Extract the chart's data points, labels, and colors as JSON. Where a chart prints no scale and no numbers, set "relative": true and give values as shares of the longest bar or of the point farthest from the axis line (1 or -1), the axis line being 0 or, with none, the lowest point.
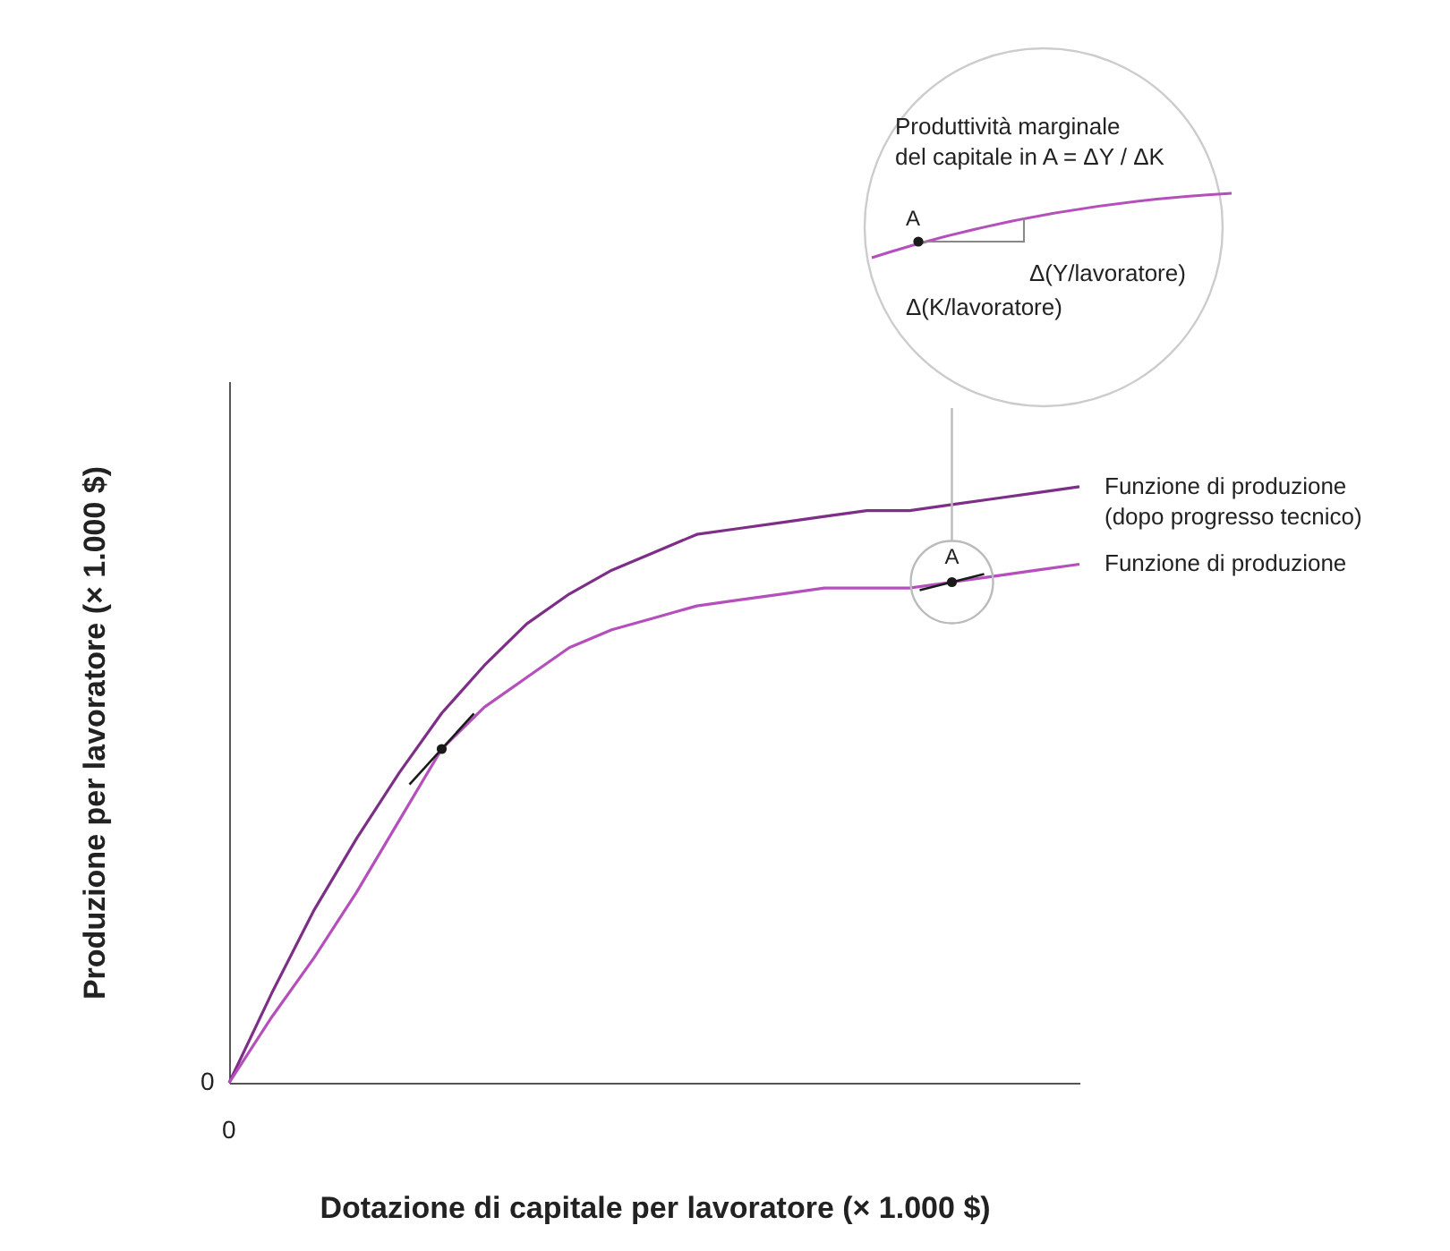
{
  "chart_data": {
    "type": "line",
    "relative": true,
    "xlabel": "Dotazione di capitale per lavoratore (× 1.000 $)",
    "ylabel": "Produzione per lavoratore (× 1.000 $)",
    "categories": [
      null,
      null,
      null,
      null,
      null,
      null,
      null,
      null,
      null,
      null,
      null,
      null,
      null,
      null,
      null,
      null,
      null,
      null,
      null,
      null,
      null
    ],
    "series": [
      {
        "name": "Funzione di produzione\n(dopo progresso tecnico)",
        "color": "#7d2e86",
        "values": [
          0,
          0.15,
          0.29,
          0.41,
          0.52,
          0.62,
          0.7,
          0.77,
          0.82,
          0.86,
          0.89,
          0.92,
          0.93,
          0.94,
          0.95,
          0.96,
          0.96,
          0.97,
          0.98,
          0.99,
          1
        ]
      },
      {
        "name": "Funzione di produzione",
        "color": "#b44fbb",
        "values": [
          0,
          0.11,
          0.21,
          0.32,
          0.44,
          0.56,
          0.63,
          0.68,
          0.73,
          0.76,
          0.78,
          0.8,
          0.81,
          0.82,
          0.83,
          0.83,
          0.83,
          0.84,
          0.85,
          0.86,
          0.87
        ]
      }
    ],
    "legend": false,
    "grid": false,
    "annotations": [
      "0",
      "0",
      "A",
      "Produttività marginale\ndel capitale in A = ΔY / ΔK",
      "A",
      "Δ(Y/lavoratore)",
      "Δ(K/lavoratore)"
    ]
  }
}
